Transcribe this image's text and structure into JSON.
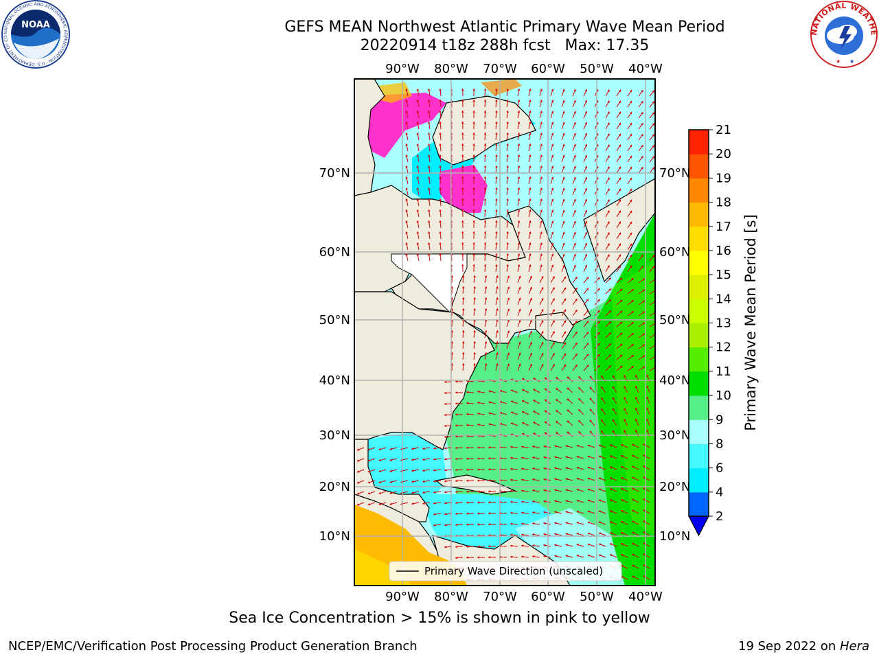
{
  "header": {
    "title_line1": "GEFS MEAN Northwest Atlantic Primary Wave Mean Period",
    "title_line2": "20220914 t18z 288h fcst   Max: 17.35"
  },
  "logos": {
    "left": {
      "name": "noaa-logo",
      "text": "NOAA",
      "ring_text": "NATIONAL OCEANIC AND ATMOSPHERIC ADMINISTRATION · U.S. DEPARTMENT OF COMMERCE"
    },
    "right": {
      "name": "nws-logo",
      "ring_text": "NATIONAL WEATHER SERVICE"
    }
  },
  "map": {
    "lon_labels": [
      "90°W",
      "80°W",
      "70°W",
      "60°W",
      "50°W",
      "40°W"
    ],
    "lat_labels": [
      "70°N",
      "60°N",
      "50°N",
      "40°N",
      "30°N",
      "20°N",
      "10°N"
    ],
    "legend_label": "Primary Wave Direction (unscaled)",
    "colors": {
      "land": "#efecdd",
      "arrow": "#d40000",
      "ice_pink": "#ff33cc",
      "grid": "#b0b0b0"
    }
  },
  "colorbar": {
    "label": "Primary Wave Mean Period [s]",
    "ticks": [
      "2",
      "4",
      "6",
      "8",
      "9",
      "10",
      "11",
      "12",
      "13",
      "14",
      "15",
      "16",
      "17",
      "18",
      "19",
      "20",
      "21"
    ],
    "colors": [
      "#0066ff",
      "#00eeff",
      "#44f8ff",
      "#aaffff",
      "#55ee88",
      "#00dd00",
      "#55ee00",
      "#aaee00",
      "#ccff00",
      "#ddf000",
      "#ffff00",
      "#ffdd00",
      "#ffbb00",
      "#ff8800",
      "#ff5500",
      "#ff2200"
    ],
    "under_color": "#0000ee"
  },
  "footer": {
    "note": "Sea Ice Concentration > 15% is shown in pink to yellow",
    "branch": "NCEP/EMC/Verification Post Processing Product Generation Branch",
    "date": "19 Sep 2022 on ",
    "machine": "Hera"
  }
}
